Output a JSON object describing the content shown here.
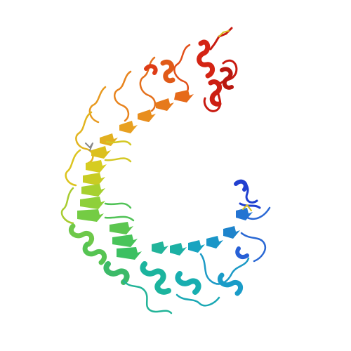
{
  "image": {
    "background": "#ffffff",
    "colors": {
      "n_terminus": "#1f3fd0",
      "blue": "#2b6fd6",
      "cyan": "#1a9ec9",
      "teal": "#19b6a0",
      "green": "#45c65a",
      "lime": "#8fd03a",
      "yellow": "#d9c71f",
      "orange": "#e39a1e",
      "orange_red": "#e0601a",
      "c_terminus": "#c81a10"
    }
  }
}
